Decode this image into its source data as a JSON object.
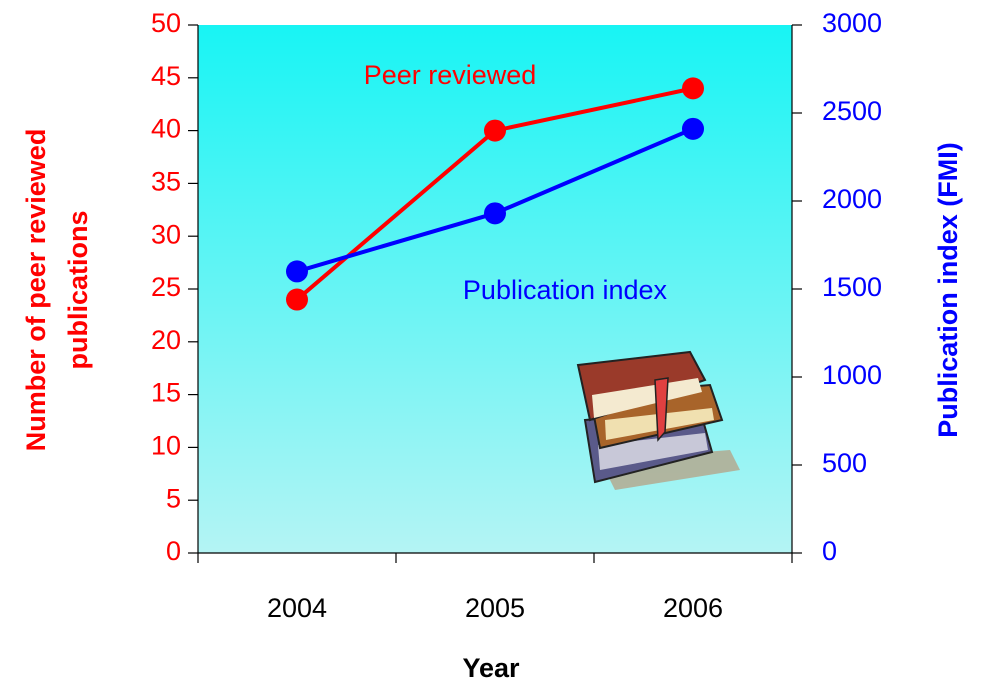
{
  "chart_data": {
    "type": "line",
    "x_label": "Year",
    "y_label": [
      "Number of peer reviewed",
      "publications"
    ],
    "y2_label": "Publication index (FMI)",
    "categories": [
      "2004",
      "2005",
      "2006"
    ],
    "series": [
      {
        "name": "Peer reviewed",
        "color": "#ff0000",
        "values": [
          24,
          40,
          44
        ]
      },
      {
        "name": "Publication index",
        "color": "#0000ff",
        "axis": "y2",
        "values": [
          1600,
          1930,
          2410
        ]
      }
    ],
    "ylim": [
      0,
      50
    ],
    "yticks": [
      0,
      5,
      10,
      15,
      20,
      25,
      30,
      35,
      40,
      45,
      50
    ],
    "y2lim": [
      0,
      3000
    ],
    "y2ticks": [
      0,
      500,
      1000,
      1500,
      2000,
      2500,
      3000
    ],
    "ycolor": "#ff0000",
    "y2color": "#0000ff"
  }
}
